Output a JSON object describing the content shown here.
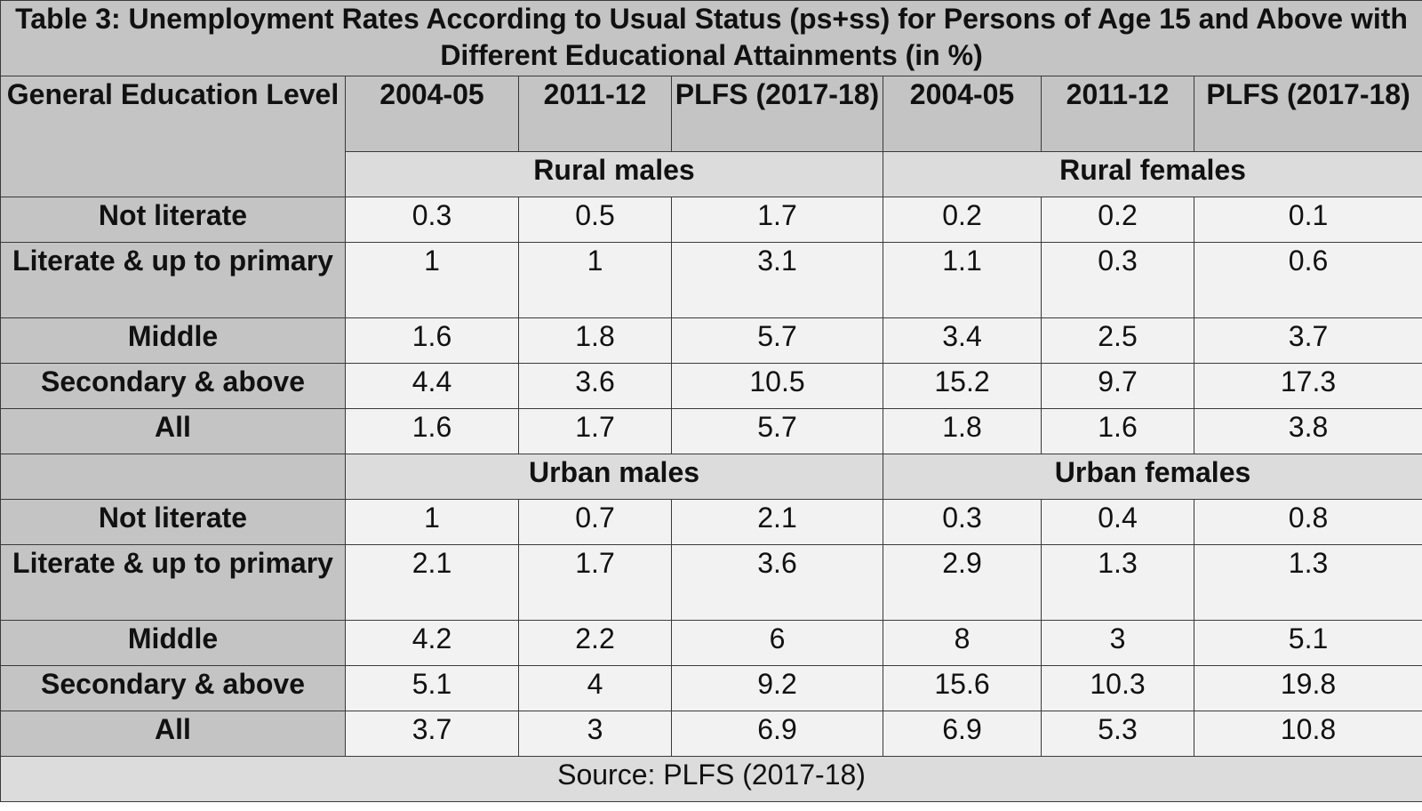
{
  "chart_data": {
    "type": "table",
    "title": "Table 3: Unemployment Rates According to Usual Status (ps+ss) for Persons of Age 15 and Above with Different Educational Attainments (in %)",
    "row_header_label": "General Education Level",
    "columns": [
      "2004-05",
      "2011-12",
      "PLFS (2017-18)",
      "2004-05",
      "2011-12",
      "PLFS (2017-18)"
    ],
    "sections": [
      {
        "groups": [
          "Rural males",
          "Rural females"
        ],
        "rows": [
          {
            "label": "Not literate",
            "values": [
              "0.3",
              "0.5",
              "1.7",
              "0.2",
              "0.2",
              "0.1"
            ]
          },
          {
            "label": "Literate & up to primary",
            "values": [
              "1",
              "1",
              "3.1",
              "1.1",
              "0.3",
              "0.6"
            ]
          },
          {
            "label": "Middle",
            "values": [
              "1.6",
              "1.8",
              "5.7",
              "3.4",
              "2.5",
              "3.7"
            ]
          },
          {
            "label": "Secondary & above",
            "values": [
              "4.4",
              "3.6",
              "10.5",
              "15.2",
              "9.7",
              "17.3"
            ]
          },
          {
            "label": "All",
            "values": [
              "1.6",
              "1.7",
              "5.7",
              "1.8",
              "1.6",
              "3.8"
            ]
          }
        ]
      },
      {
        "groups": [
          "Urban males",
          "Urban females"
        ],
        "rows": [
          {
            "label": "Not literate",
            "values": [
              "1",
              "0.7",
              "2.1",
              "0.3",
              "0.4",
              "0.8"
            ]
          },
          {
            "label": "Literate & up to primary",
            "values": [
              "2.1",
              "1.7",
              "3.6",
              "2.9",
              "1.3",
              "1.3"
            ]
          },
          {
            "label": "Middle",
            "values": [
              "4.2",
              "2.2",
              "6",
              "8",
              "3",
              "5.1"
            ]
          },
          {
            "label": "Secondary & above",
            "values": [
              "5.1",
              "4",
              "9.2",
              "15.6",
              "10.3",
              "19.8"
            ]
          },
          {
            "label": "All",
            "values": [
              "3.7",
              "3",
              "6.9",
              "6.9",
              "5.3",
              "10.8"
            ]
          }
        ]
      }
    ],
    "source": "Source: PLFS (2017-18)"
  },
  "colors": {
    "header_bg": "#c4c4c4",
    "group_bg": "#dcdcdc",
    "cell_bg": "#f2f2f2",
    "border": "#3a3a3a"
  }
}
